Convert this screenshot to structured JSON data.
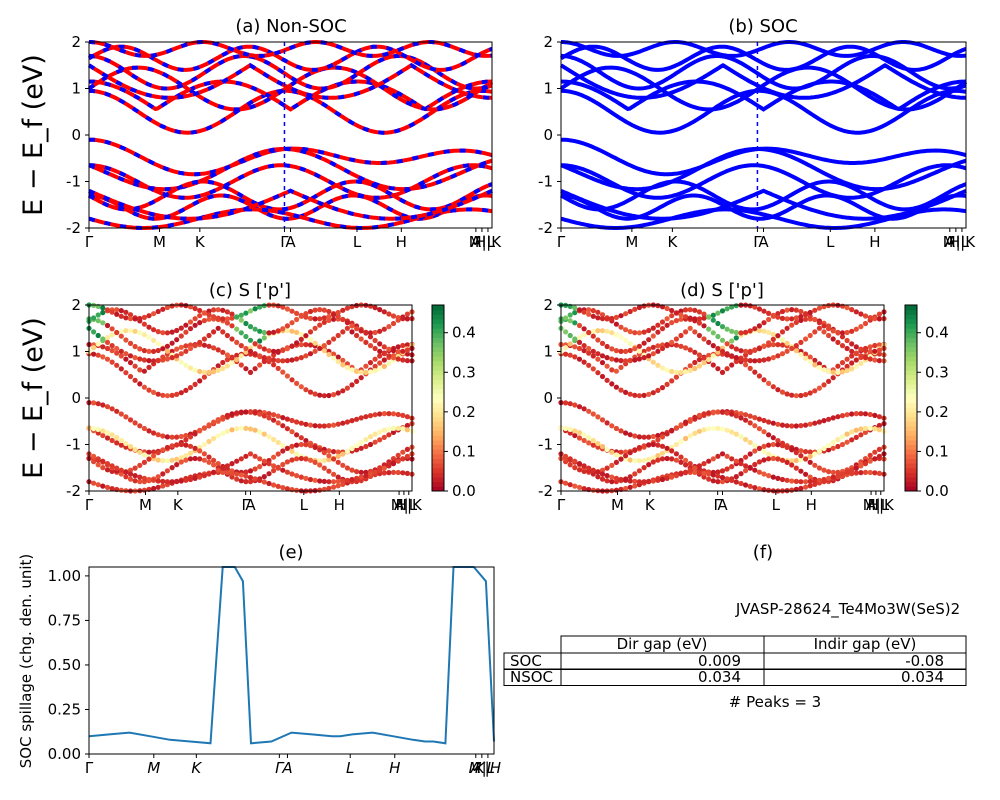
{
  "ylabel_main": "E − E_f (eV)",
  "kpath_labels": [
    "Γ",
    "M",
    "K",
    "Γ",
    "A",
    "L",
    "H",
    "A",
    "M|L",
    "H|K"
  ],
  "kpath_labels_e": [
    "Γ",
    "M",
    "K",
    "Γ",
    "A",
    "L",
    "H",
    "A",
    "M|L",
    "K|H"
  ],
  "panels": {
    "a": {
      "title": "(a) Non-SOC"
    },
    "b": {
      "title": "(b) SOC"
    },
    "c": {
      "title": "(c)  S ['p']"
    },
    "d": {
      "title": "(d) S ['p']"
    },
    "e": {
      "title": "(e)",
      "ylabel": "SOC spillage (chg. den. unit)"
    },
    "f": {
      "title": "(f)"
    }
  },
  "colors": {
    "nsoc_up": "#ff0000",
    "nsoc_dn": "#0000ff",
    "soc": "#0000ff",
    "spillage": "#1f77b4"
  },
  "colorbar": {
    "cmap": "RdYlGn",
    "min": 0.0,
    "max": 0.47,
    "ticks": [
      "0.0",
      "0.1",
      "0.2",
      "0.3",
      "0.4"
    ]
  },
  "table": {
    "jid": "JVASP-28624_Te4Mo3W(SeS)2",
    "headers": [
      "",
      "Dir gap (eV)",
      "Indir gap (eV)"
    ],
    "rows": [
      [
        "SOC",
        "0.009",
        "-0.08"
      ],
      [
        "NSOC",
        "0.034",
        "0.034"
      ]
    ],
    "peaks": "# Peaks = 3"
  },
  "chart_data": [
    {
      "panel": "a",
      "type": "scatter",
      "title": "(a) Non-SOC",
      "ylabel": "E − E_f (eV)",
      "ylim": [
        -2,
        2
      ],
      "yticks": [
        -2,
        -1,
        0,
        1,
        2
      ],
      "xticklabels": [
        "Γ",
        "M",
        "K",
        "Γ",
        "A",
        "L",
        "H",
        "A",
        "M|L",
        "H|K"
      ],
      "series": [
        {
          "bands_ev_at_gamma": [
            -0.3,
            -0.8,
            -1.3,
            -1.6,
            -1.9,
            1.4,
            1.7,
            1.9
          ]
        }
      ]
    },
    {
      "panel": "b",
      "type": "scatter",
      "title": "(b) SOC",
      "ylabel": "",
      "ylim": [
        -2,
        2
      ],
      "yticks": [
        -2,
        -1,
        0,
        1,
        2
      ],
      "xticklabels": [
        "Γ",
        "M",
        "K",
        "Γ",
        "A",
        "L",
        "H",
        "A",
        "M|L",
        "H|K"
      ]
    },
    {
      "panel": "c",
      "type": "scatter",
      "title": "(c)  S ['p']",
      "ylabel": "E − E_f (eV)",
      "ylim": [
        -2,
        2
      ],
      "color_range": [
        0.0,
        0.47
      ],
      "xticklabels": [
        "Γ",
        "M",
        "K",
        "Γ",
        "A",
        "L",
        "H",
        "A",
        "M|L",
        "H|K"
      ]
    },
    {
      "panel": "d",
      "type": "scatter",
      "title": "(d) S ['p']",
      "ylabel": "",
      "ylim": [
        -2,
        2
      ],
      "color_range": [
        0.0,
        0.47
      ],
      "xticklabels": [
        "Γ",
        "M",
        "K",
        "Γ",
        "A",
        "L",
        "H",
        "A",
        "M|L",
        "H|K"
      ]
    },
    {
      "panel": "e",
      "type": "line",
      "title": "(e)",
      "ylabel": "SOC spillage (chg. den. unit)",
      "ylim": [
        0,
        1.05
      ],
      "yticks": [
        "0.00",
        "0.25",
        "0.50",
        "0.75",
        "1.00"
      ],
      "xticklabels": [
        "Γ",
        "M",
        "K",
        "Γ",
        "A",
        "L",
        "H",
        "A",
        "M|L",
        "K|H"
      ],
      "x": [
        0,
        0.05,
        0.1,
        0.15,
        0.2,
        0.25,
        0.3,
        0.33,
        0.36,
        0.38,
        0.4,
        0.45,
        0.5,
        0.55,
        0.6,
        0.62,
        0.65,
        0.7,
        0.75,
        0.8,
        0.83,
        0.85,
        0.88,
        0.9,
        0.95,
        0.98,
        1.0
      ],
      "y": [
        0.1,
        0.11,
        0.12,
        0.1,
        0.08,
        0.07,
        0.06,
        1.05,
        1.05,
        0.97,
        0.06,
        0.07,
        0.12,
        0.11,
        0.1,
        0.1,
        0.11,
        0.12,
        0.1,
        0.08,
        0.07,
        0.07,
        0.06,
        1.05,
        1.05,
        0.97,
        0.07
      ]
    }
  ]
}
